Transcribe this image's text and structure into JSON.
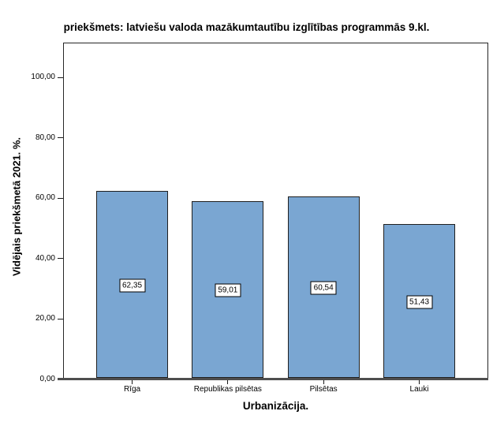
{
  "chart_data": {
    "type": "bar",
    "title": "priekšmets: latviešu valoda mazākumtautību izglītības programmās 9.kl.",
    "xlabel": "Urbanizācija.",
    "ylabel": "Vidējais priekšmetā 2021. %.",
    "categories": [
      "Rīga",
      "Republikas pilsētas",
      "Pilsētas",
      "Lauki"
    ],
    "values": [
      62.35,
      59.01,
      60.54,
      51.43
    ],
    "value_labels": [
      "62,35",
      "59,01",
      "60,54",
      "51,43"
    ],
    "yticks": [
      0,
      20,
      40,
      60,
      80,
      100
    ],
    "ytick_labels": [
      "0,00",
      "20,00",
      "40,00",
      "60,00",
      "80,00",
      "100,00"
    ],
    "ylim": [
      0,
      111.5
    ],
    "grid": false,
    "legend": null,
    "bar_color": "#7AA6D2",
    "bar_border_color": "#1F1F1F",
    "axis_color": "#262626",
    "baseline_color": "#4E4E4E"
  }
}
